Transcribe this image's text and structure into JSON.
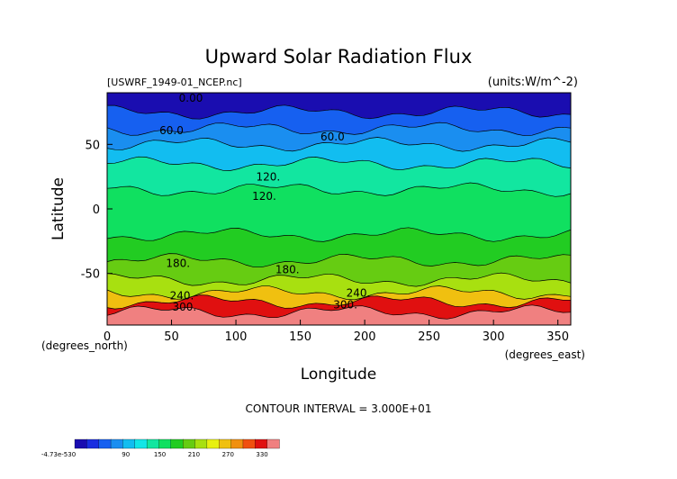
{
  "chart_data": {
    "type": "heatmap",
    "title": "Upward Solar Radiation Flux",
    "file_label": "[USWRF_1949-01_NCEP.nc]",
    "units_label": "(units:W/m^-2)",
    "xlabel": "Longitude",
    "ylabel": "Latitude",
    "x_unit_label": "(degrees_east)",
    "y_unit_label": "(degrees_north)",
    "xlim": [
      0,
      360
    ],
    "ylim": [
      -90,
      90
    ],
    "x_ticks": [
      0,
      50,
      100,
      150,
      200,
      250,
      300,
      350
    ],
    "y_ticks": [
      50,
      0,
      -50
    ],
    "contour_interval_text": "CONTOUR INTERVAL = 3.000E+01",
    "contour_labels": [
      "0.00",
      "60.0",
      "60.0",
      "120.",
      "120.",
      "180.",
      "180.",
      "240.",
      "240.",
      "300.",
      "300."
    ],
    "colorbar": {
      "tick_labels": [
        "-4.73e-530",
        "90",
        "150",
        "210",
        "270",
        "330"
      ],
      "colors": [
        "#1a0db0",
        "#1a2ee0",
        "#1660f0",
        "#1a8ef0",
        "#12bdf0",
        "#12e6e6",
        "#12e6a0",
        "#10e060",
        "#22cc22",
        "#66cc12",
        "#a8e010",
        "#e8f010",
        "#f0c010",
        "#f09010",
        "#f05010",
        "#e01010",
        "#f08080"
      ]
    },
    "latitude_bands": [
      {
        "lat_from": 90,
        "lat_to": 75,
        "value": 0
      },
      {
        "lat_from": 75,
        "lat_to": 62,
        "value": 40
      },
      {
        "lat_from": 62,
        "lat_to": 50,
        "value": 60
      },
      {
        "lat_from": 50,
        "lat_to": 35,
        "value": 90
      },
      {
        "lat_from": 35,
        "lat_to": 15,
        "value": 120
      },
      {
        "lat_from": 15,
        "lat_to": -20,
        "value": 150
      },
      {
        "lat_from": -20,
        "lat_to": -40,
        "value": 170
      },
      {
        "lat_from": -40,
        "lat_to": -55,
        "value": 185
      },
      {
        "lat_from": -55,
        "lat_to": -65,
        "value": 210
      },
      {
        "lat_from": -65,
        "lat_to": -72,
        "value": 260
      },
      {
        "lat_from": -72,
        "lat_to": -80,
        "value": 310
      },
      {
        "lat_from": -80,
        "lat_to": -90,
        "value": 340
      }
    ]
  }
}
